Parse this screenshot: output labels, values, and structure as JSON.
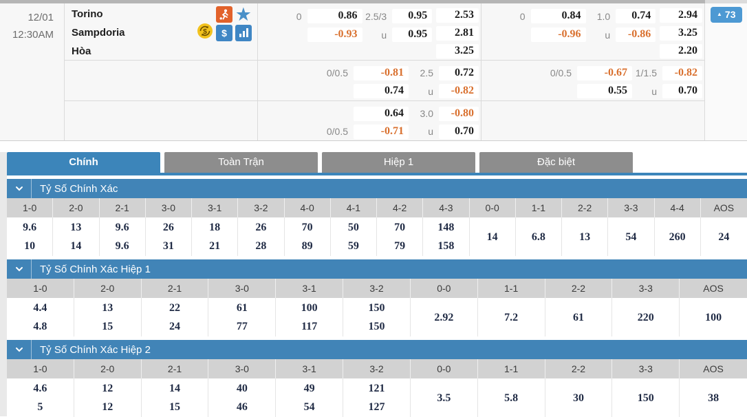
{
  "colors": {
    "accent_blue": "#4184b7",
    "badge_blue": "#4d99d3",
    "odds_orange": "#d9702e",
    "tab_inactive_gray": "#8d8d8d",
    "column_header_gray": "#d2d2d2"
  },
  "match": {
    "date": "12/01",
    "time": "12:30AM",
    "home": "Torino",
    "away": "Sampdoria",
    "draw": "Hòa",
    "live_count": "73",
    "icons": [
      "soccer-player",
      "star",
      "money-exchange",
      "dollar",
      "bar-chart"
    ]
  },
  "odds_panel": {
    "rows": [
      {
        "left": {
          "hdp": [
            [
              "0",
              "0.86"
            ],
            [
              "",
              "-0.93"
            ]
          ],
          "ou": [
            [
              "2.5/3",
              "0.95"
            ],
            [
              "u",
              "0.95"
            ]
          ],
          "x12": [
            "2.53",
            "2.81",
            "3.25"
          ]
        },
        "right": {
          "hdp": [
            [
              "0",
              "0.84"
            ],
            [
              "",
              "-0.96"
            ]
          ],
          "ou": [
            [
              "1.0",
              "0.74"
            ],
            [
              "u",
              "-0.86"
            ]
          ],
          "x12": [
            "2.94",
            "3.25",
            "2.20"
          ]
        }
      },
      {
        "left": {
          "hdp": [
            [
              "0/0.5",
              "-0.81"
            ],
            [
              "",
              "0.74"
            ]
          ],
          "ou": [
            [
              "2.5",
              "0.72"
            ],
            [
              "u",
              "-0.82"
            ]
          ],
          "x12": []
        },
        "right": {
          "hdp": [
            [
              "0/0.5",
              "-0.67"
            ],
            [
              "",
              "0.55"
            ]
          ],
          "ou": [
            [
              "1/1.5",
              "-0.82"
            ],
            [
              "u",
              "0.70"
            ]
          ],
          "x12": []
        }
      },
      {
        "left": {
          "hdp": [
            [
              "",
              "0.64"
            ],
            [
              "0/0.5",
              "-0.71"
            ]
          ],
          "ou": [
            [
              "3.0",
              "-0.80"
            ],
            [
              "u",
              "0.70"
            ]
          ],
          "x12": []
        },
        "right": null
      }
    ]
  },
  "tabs": [
    {
      "label": "Chính",
      "active": true
    },
    {
      "label": "Toàn Trận",
      "active": false
    },
    {
      "label": "Hiệp 1",
      "active": false
    },
    {
      "label": "Đặc biệt",
      "active": false
    }
  ],
  "sections": [
    {
      "title": "Tỷ Số Chính Xác",
      "columns": [
        "1-0",
        "2-0",
        "2-1",
        "3-0",
        "3-1",
        "3-2",
        "4-0",
        "4-1",
        "4-2",
        "4-3",
        "0-0",
        "1-1",
        "2-2",
        "3-3",
        "4-4",
        "AOS"
      ],
      "values": [
        [
          "9.6",
          "10"
        ],
        [
          "13",
          "14"
        ],
        [
          "9.6",
          "9.6"
        ],
        [
          "26",
          "31"
        ],
        [
          "18",
          "21"
        ],
        [
          "26",
          "28"
        ],
        [
          "70",
          "89"
        ],
        [
          "50",
          "59"
        ],
        [
          "70",
          "79"
        ],
        [
          "148",
          "158"
        ],
        [
          "14"
        ],
        [
          "6.8"
        ],
        [
          "13"
        ],
        [
          "54"
        ],
        [
          "260"
        ],
        [
          "24"
        ]
      ]
    },
    {
      "title": "Tỷ Số Chính Xác Hiệp 1",
      "columns": [
        "1-0",
        "2-0",
        "2-1",
        "3-0",
        "3-1",
        "3-2",
        "0-0",
        "1-1",
        "2-2",
        "3-3",
        "AOS"
      ],
      "values": [
        [
          "4.4",
          "4.8"
        ],
        [
          "13",
          "15"
        ],
        [
          "22",
          "24"
        ],
        [
          "61",
          "77"
        ],
        [
          "100",
          "117"
        ],
        [
          "150",
          "150"
        ],
        [
          "2.92"
        ],
        [
          "7.2"
        ],
        [
          "61"
        ],
        [
          "220"
        ],
        [
          "100"
        ]
      ]
    },
    {
      "title": "Tỷ Số Chính Xác Hiệp 2",
      "columns": [
        "1-0",
        "2-0",
        "2-1",
        "3-0",
        "3-1",
        "3-2",
        "0-0",
        "1-1",
        "2-2",
        "3-3",
        "AOS"
      ],
      "values": [
        [
          "4.6",
          "5"
        ],
        [
          "12",
          "12"
        ],
        [
          "14",
          "15"
        ],
        [
          "40",
          "46"
        ],
        [
          "49",
          "54"
        ],
        [
          "121",
          "127"
        ],
        [
          "3.5"
        ],
        [
          "5.8"
        ],
        [
          "30"
        ],
        [
          "150"
        ],
        [
          "38"
        ]
      ]
    }
  ]
}
